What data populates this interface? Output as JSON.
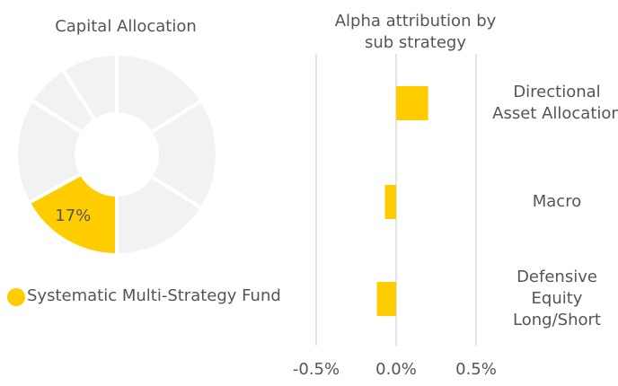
{
  "chart_data": [
    {
      "type": "donut",
      "title": "Capital Allocation",
      "categories": [
        null,
        null,
        null,
        "Systematic Multi-Strategy Fund",
        null,
        null,
        null
      ],
      "values": [
        16,
        18,
        16,
        17,
        17,
        7,
        9
      ],
      "value_labels": [
        null,
        null,
        null,
        "17%",
        null,
        null,
        null
      ],
      "colors": [
        "#f2f2f2",
        "#f2f2f2",
        "#f2f2f2",
        "#ffcc00",
        "#f2f2f2",
        "#f2f2f2",
        "#f2f2f2"
      ]
    },
    {
      "type": "hbar",
      "title": "Alpha attribution by sub strategy",
      "categories": [
        "Directional Asset Allocation",
        "Macro",
        "Defensive Equity Long/Short"
      ],
      "values": [
        0.2,
        -0.07,
        -0.12
      ],
      "color": "#ffcc00",
      "xlim": [
        -0.5,
        0.5
      ],
      "xticks": [
        {
          "value": -0.5,
          "label": "-0.5%"
        },
        {
          "value": 0,
          "label": "0.0%"
        },
        {
          "value": 0.5,
          "label": "0.5%"
        }
      ],
      "grid": true
    }
  ]
}
